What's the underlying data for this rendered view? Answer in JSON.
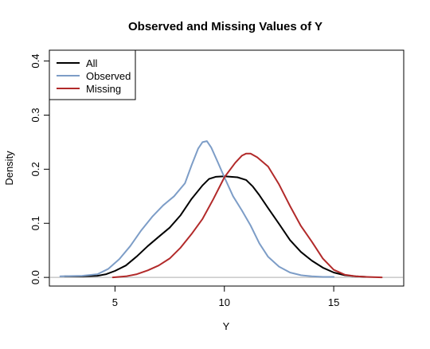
{
  "chart_data": {
    "type": "line",
    "title": "Observed and Missing Values of Y",
    "xlabel": "Y",
    "ylabel": "Density",
    "xlim": [
      2.0,
      18.2
    ],
    "ylim": [
      -0.016,
      0.42
    ],
    "xticks": [
      5,
      10,
      15
    ],
    "xtick_labels": [
      "5",
      "10",
      "15"
    ],
    "yticks": [
      0.0,
      0.1,
      0.2,
      0.3,
      0.4
    ],
    "ytick_labels": [
      "0.0",
      "0.1",
      "0.2",
      "0.3",
      "0.4"
    ],
    "grid": false,
    "legend_position": "top-left",
    "baseline": {
      "y": 0,
      "color": "#bebebe"
    },
    "series": [
      {
        "name": "All",
        "color": "#000000",
        "x": [
          2.7,
          3.5,
          4.2,
          4.6,
          5.0,
          5.5,
          6.0,
          6.5,
          7.0,
          7.5,
          8.0,
          8.5,
          9.0,
          9.3,
          9.6,
          10.0,
          10.3,
          10.6,
          11.0,
          11.3,
          11.6,
          12.0,
          12.5,
          13.0,
          13.5,
          14.0,
          14.5,
          15.0,
          15.5,
          16.0,
          16.5
        ],
        "y": [
          0.002,
          0.002,
          0.003,
          0.006,
          0.012,
          0.022,
          0.039,
          0.058,
          0.075,
          0.092,
          0.115,
          0.145,
          0.17,
          0.182,
          0.186,
          0.187,
          0.186,
          0.185,
          0.18,
          0.168,
          0.152,
          0.128,
          0.099,
          0.069,
          0.047,
          0.031,
          0.018,
          0.009,
          0.004,
          0.002,
          0.001
        ]
      },
      {
        "name": "Observed",
        "color": "#7d9dc7",
        "x": [
          2.5,
          3.5,
          4.2,
          4.7,
          5.2,
          5.7,
          6.2,
          6.7,
          7.2,
          7.7,
          8.2,
          8.5,
          8.8,
          9.0,
          9.2,
          9.4,
          9.7,
          10.0,
          10.4,
          10.8,
          11.2,
          11.6,
          12.0,
          12.5,
          13.0,
          13.5,
          14.0,
          14.5,
          15.0
        ],
        "y": [
          0.002,
          0.003,
          0.006,
          0.016,
          0.034,
          0.058,
          0.087,
          0.112,
          0.133,
          0.15,
          0.174,
          0.207,
          0.238,
          0.25,
          0.252,
          0.24,
          0.213,
          0.185,
          0.15,
          0.124,
          0.096,
          0.063,
          0.038,
          0.02,
          0.009,
          0.004,
          0.002,
          0.001,
          0.001
        ]
      },
      {
        "name": "Missing",
        "color": "#b22a2a",
        "x": [
          4.9,
          5.5,
          6.0,
          6.5,
          7.0,
          7.5,
          8.0,
          8.5,
          9.0,
          9.5,
          10.0,
          10.5,
          10.8,
          11.0,
          11.2,
          11.5,
          12.0,
          12.5,
          13.0,
          13.5,
          14.0,
          14.5,
          15.0,
          15.5,
          16.0,
          16.5,
          17.2
        ],
        "y": [
          0.0,
          0.002,
          0.006,
          0.013,
          0.022,
          0.035,
          0.055,
          0.08,
          0.108,
          0.145,
          0.185,
          0.212,
          0.225,
          0.229,
          0.229,
          0.222,
          0.205,
          0.172,
          0.132,
          0.095,
          0.066,
          0.035,
          0.014,
          0.005,
          0.002,
          0.001,
          0.0
        ]
      }
    ]
  }
}
